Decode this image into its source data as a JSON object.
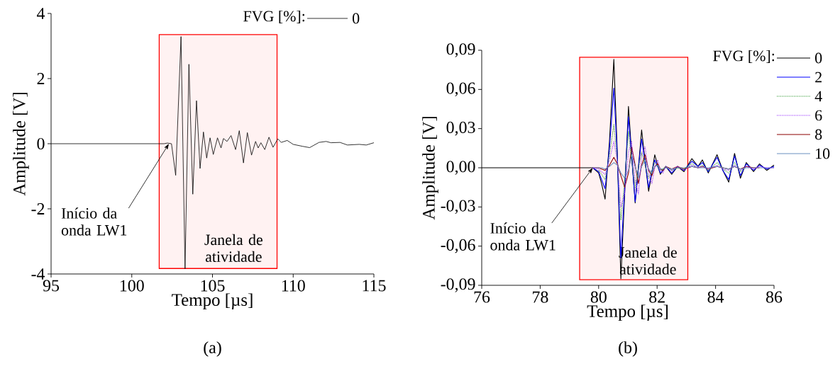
{
  "chart_data": [
    {
      "type": "line",
      "xlabel": "Tempo [µs]",
      "ylabel": "Amplitude [V]",
      "legend_title": "FVG [%]:",
      "legend": "top right",
      "x": [
        95,
        102.0,
        102.2,
        102.46,
        102.72,
        103.05,
        103.3,
        103.54,
        103.78,
        104.01,
        104.23,
        104.44,
        104.64,
        104.85,
        105.05,
        105.31,
        105.53,
        105.68,
        105.9,
        106.15,
        106.43,
        106.66,
        106.92,
        107.16,
        107.42,
        107.67,
        107.83,
        108.0,
        108.24,
        108.5,
        108.75,
        109.05,
        109.26,
        109.63,
        110.0,
        110.58,
        111.02,
        111.6,
        112.04,
        112.34,
        112.9,
        113.36,
        114.09,
        114.53,
        115
      ],
      "series": [
        {
          "name": "0",
          "color": "#000000",
          "line_style": "solid",
          "values": [
            0,
            0,
            0.02,
            0.0,
            -0.97,
            3.29,
            -3.84,
            2.44,
            -1.55,
            1.32,
            -0.76,
            0.36,
            -0.44,
            0.18,
            -0.33,
            0.18,
            -0.13,
            0.16,
            0.07,
            0.25,
            -0.18,
            0.4,
            -0.59,
            0.34,
            -0.35,
            0.07,
            -0.13,
            0.03,
            -0.18,
            0.2,
            -0.11,
            0.15,
            0.04,
            0.1,
            -0.02,
            -0.08,
            -0.12,
            0.04,
            0.07,
            0.03,
            0.04,
            -0.04,
            -0.02,
            -0.04,
            0.03
          ]
        }
      ],
      "xlim": [
        95,
        115
      ],
      "ylim": [
        -4,
        4
      ],
      "xticks": [
        95,
        100,
        105,
        110,
        115
      ],
      "yticks": [
        -4,
        -2,
        0,
        2,
        4
      ],
      "bands": [
        {
          "axis": "x",
          "from": 101.7,
          "to": 109.0,
          "label": "Janela de atividade",
          "color": "#ff0000"
        }
      ],
      "annotations": [
        {
          "text": "Início da onda LW1",
          "x": 102.3,
          "y": 0
        },
        "(a)"
      ]
    },
    {
      "type": "line",
      "xlabel": "Tempo [µs]",
      "ylabel": "Amplitude [V]",
      "legend_title": "FVG [%]:",
      "legend": "top right",
      "x": [
        76,
        79.8,
        80.0,
        80.1,
        80.22,
        80.37,
        80.52,
        80.64,
        80.76,
        80.89,
        81.02,
        81.13,
        81.25,
        81.36,
        81.47,
        81.59,
        81.71,
        81.82,
        81.92,
        82.02,
        82.11,
        82.2,
        82.3,
        82.5,
        82.7,
        82.92,
        83.19,
        83.4,
        83.55,
        83.75,
        84.05,
        84.25,
        84.45,
        84.65,
        84.85,
        85.05,
        85.3,
        85.5,
        85.75,
        86
      ],
      "series": [
        {
          "name": "0",
          "color": "#000000",
          "line_style": "solid",
          "values": [
            0,
            0,
            -0.004,
            -0.012,
            -0.024,
            0.02,
            0.083,
            0.01,
            -0.085,
            -0.02,
            0.047,
            0.01,
            -0.027,
            0,
            0.029,
            0.005,
            -0.018,
            -0.004,
            0.01,
            0.002,
            -0.005,
            -0.002,
            0.001,
            -0.005,
            0.001,
            -0.003,
            0.007,
            0.001,
            0.006,
            -0.004,
            0.01,
            -0.002,
            -0.011,
            0.011,
            -0.008,
            0.004,
            -0.003,
            0.003,
            -0.002,
            0.002
          ]
        },
        {
          "name": "2",
          "color": "#0000ff",
          "line_style": "solid",
          "values": [
            null,
            0,
            -0.003,
            -0.009,
            -0.016,
            0.015,
            0.061,
            0.008,
            -0.069,
            -0.015,
            0.039,
            0.008,
            -0.026,
            0,
            0.022,
            0.004,
            -0.015,
            -0.003,
            0.006,
            0.001,
            -0.004,
            -0.002,
            0.001,
            -0.004,
            0.001,
            -0.002,
            0.005,
            0.001,
            0.004,
            -0.003,
            0.008,
            -0.002,
            -0.009,
            0.009,
            -0.006,
            0.003,
            -0.002,
            0.002,
            -0.001,
            0.001
          ]
        },
        {
          "name": "4",
          "color": "#339933",
          "line_style": "dotted",
          "values": [
            null,
            null,
            -0.002,
            -0.005,
            -0.009,
            0.01,
            0.033,
            0.005,
            -0.04,
            -0.01,
            0.028,
            0.005,
            -0.015,
            0,
            0.012,
            0.002,
            -0.008,
            -0.002,
            0.004,
            0.001,
            -0.002,
            -0.001,
            0.001,
            -0.002,
            0,
            -0.001,
            0.003,
            0,
            0.002,
            -0.002,
            0.004,
            -0.001,
            -0.004,
            0.004,
            -0.003,
            0.001,
            null,
            null,
            null,
            null
          ]
        },
        {
          "name": "6",
          "color": "#9933ff",
          "line_style": "dotted",
          "values": [
            null,
            0,
            -0.001,
            -0.003,
            -0.005,
            0.006,
            0.02,
            0.005,
            -0.03,
            -0.02,
            0.012,
            0.02,
            -0.01,
            -0.02,
            0.01,
            0.016,
            -0.005,
            -0.012,
            0,
            0.006,
            -0.002,
            -0.004,
            0.001,
            -0.002,
            0.001,
            -0.002,
            0.002,
            0,
            0.001,
            -0.001,
            0.002,
            -0.001,
            -0.002,
            0.002,
            -0.002,
            0.001,
            -0.001,
            0.001,
            0,
            0
          ]
        },
        {
          "name": "8",
          "color": "#8b0000",
          "line_style": "solid",
          "values": [
            null,
            0,
            0,
            -0.001,
            -0.002,
            0.002,
            0.008,
            0.003,
            -0.006,
            -0.015,
            -0.004,
            0.016,
            0.002,
            -0.012,
            0.002,
            0.01,
            -0.002,
            -0.006,
            0.001,
            0.003,
            -0.001,
            -0.002,
            0.001,
            -0.001,
            0.001,
            -0.001,
            0.001,
            0,
            0.001,
            -0.001,
            0.001,
            0,
            -0.001,
            0.001,
            -0.001,
            0.001,
            0,
            0,
            null,
            null
          ]
        },
        {
          "name": "10",
          "color": "#6a8fbf",
          "line_style": "solid",
          "values": [
            null,
            0,
            0,
            0,
            -0.001,
            0.001,
            0.004,
            0.002,
            -0.004,
            -0.008,
            -0.002,
            0.01,
            0.001,
            -0.008,
            0.001,
            0.006,
            -0.001,
            -0.004,
            0.001,
            0.002,
            -0.001,
            -0.001,
            0,
            -0.001,
            0,
            0,
            0.001,
            0,
            0,
            0,
            0.001,
            0,
            -0.001,
            0.001,
            -0.001,
            0,
            0,
            0,
            0,
            0
          ]
        }
      ],
      "xlim": [
        76,
        86
      ],
      "ylim": [
        -0.09,
        0.09
      ],
      "xticks": [
        76,
        78,
        80,
        82,
        84,
        86
      ],
      "yticks": [
        {
          "value": -0.09,
          "label": "-0,09"
        },
        {
          "value": -0.06,
          "label": "-0,06"
        },
        {
          "value": -0.03,
          "label": "-0,03"
        },
        {
          "value": 0,
          "label": "0,00"
        },
        {
          "value": 0.03,
          "label": "0,03"
        },
        {
          "value": 0.06,
          "label": "0,06"
        },
        {
          "value": 0.09,
          "label": "0,09"
        }
      ],
      "bands": [
        {
          "axis": "x",
          "from": 79.35,
          "to": 83.05,
          "label": "Janela de atividade",
          "color": "#ff0000"
        }
      ],
      "annotations": [
        {
          "text": "Início da onda LW1",
          "x": 79.8,
          "y": 0
        },
        "(b)"
      ]
    }
  ]
}
